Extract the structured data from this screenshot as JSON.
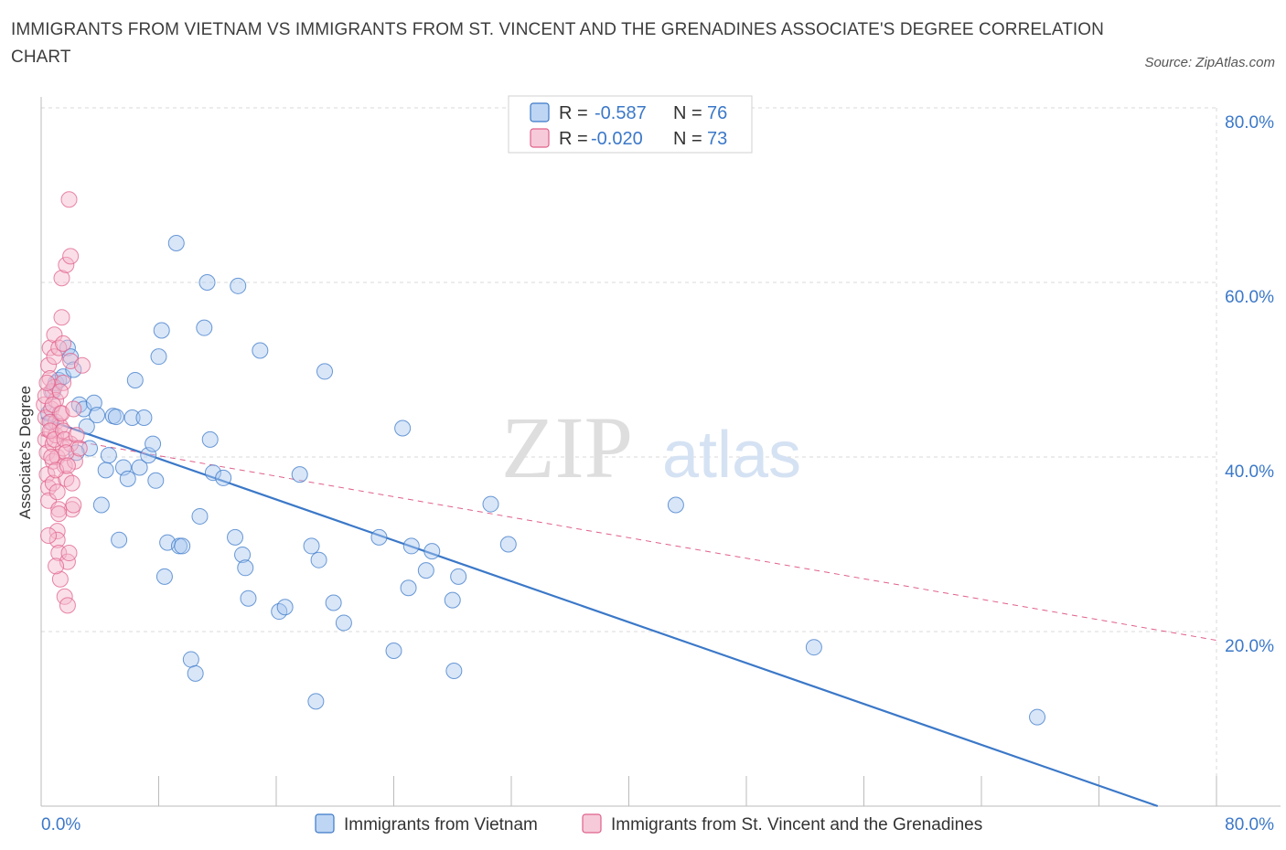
{
  "title": "IMMIGRANTS FROM VIETNAM VS IMMIGRANTS FROM ST. VINCENT AND THE GRENADINES ASSOCIATE'S DEGREE CORRELATION CHART",
  "source": "Source: ZipAtlas.com",
  "watermark": {
    "zip": "ZIP",
    "atlas": "atlas"
  },
  "colors": {
    "blue": "#3b78c8",
    "blue_fill": "#a8c8f0",
    "pink": "#e0608a",
    "pink_fill": "#f4b8cc",
    "grid": "#d8d8d8",
    "tick_text": "#3b78c8"
  },
  "legend": {
    "rows": [
      {
        "r_label": "R =",
        "r_value": "-0.587",
        "n_label": "N =",
        "n_value": "76"
      },
      {
        "r_label": "R =",
        "r_value": "-0.020",
        "n_label": "N =",
        "n_value": "73"
      }
    ]
  },
  "chart_data": {
    "type": "scatter",
    "xlabel": "",
    "ylabel": "Associate's Degree",
    "xlim": [
      0,
      80
    ],
    "ylim": [
      0,
      80
    ],
    "x_tick_labels": [
      "0.0%",
      "80.0%"
    ],
    "y_tick_labels": [
      "20.0%",
      "40.0%",
      "60.0%",
      "80.0%"
    ],
    "y_ticks": [
      20,
      40,
      60,
      80
    ],
    "grid": true,
    "legend_position": "bottom",
    "series": [
      {
        "name": "Immigrants from Vietnam",
        "color": "#3b78c8",
        "points": [
          [
            0.5,
            45.0
          ],
          [
            0.8,
            47.5
          ],
          [
            1.0,
            48.5
          ],
          [
            1.2,
            48.8
          ],
          [
            1.5,
            49.2
          ],
          [
            1.8,
            52.5
          ],
          [
            2.0,
            51.5
          ],
          [
            2.2,
            50.0
          ],
          [
            2.6,
            46.0
          ],
          [
            2.9,
            45.5
          ],
          [
            3.1,
            43.5
          ],
          [
            3.3,
            41.0
          ],
          [
            3.6,
            46.2
          ],
          [
            3.8,
            44.8
          ],
          [
            4.1,
            34.5
          ],
          [
            4.4,
            38.5
          ],
          [
            4.6,
            40.2
          ],
          [
            4.9,
            44.7
          ],
          [
            5.1,
            44.6
          ],
          [
            5.3,
            30.5
          ],
          [
            5.6,
            38.8
          ],
          [
            5.9,
            37.5
          ],
          [
            6.2,
            44.5
          ],
          [
            6.4,
            48.8
          ],
          [
            6.7,
            38.8
          ],
          [
            7.0,
            44.5
          ],
          [
            7.3,
            40.2
          ],
          [
            7.6,
            41.5
          ],
          [
            7.8,
            37.3
          ],
          [
            8.0,
            51.5
          ],
          [
            8.2,
            54.5
          ],
          [
            8.4,
            26.3
          ],
          [
            8.6,
            30.2
          ],
          [
            9.2,
            64.5
          ],
          [
            9.4,
            29.8
          ],
          [
            9.6,
            29.8
          ],
          [
            10.2,
            16.8
          ],
          [
            10.5,
            15.2
          ],
          [
            10.8,
            33.2
          ],
          [
            11.1,
            54.8
          ],
          [
            11.3,
            60.0
          ],
          [
            11.5,
            42.0
          ],
          [
            11.7,
            38.2
          ],
          [
            12.4,
            37.6
          ],
          [
            13.2,
            30.8
          ],
          [
            13.4,
            59.6
          ],
          [
            13.7,
            28.8
          ],
          [
            13.9,
            27.3
          ],
          [
            14.1,
            23.8
          ],
          [
            14.9,
            52.2
          ],
          [
            16.2,
            22.3
          ],
          [
            16.6,
            22.8
          ],
          [
            17.6,
            38.0
          ],
          [
            18.4,
            29.8
          ],
          [
            18.7,
            12.0
          ],
          [
            18.9,
            28.2
          ],
          [
            19.3,
            49.8
          ],
          [
            19.9,
            23.3
          ],
          [
            20.6,
            21.0
          ],
          [
            23.0,
            30.8
          ],
          [
            24.0,
            17.8
          ],
          [
            24.6,
            43.3
          ],
          [
            25.0,
            25.0
          ],
          [
            25.2,
            29.8
          ],
          [
            26.2,
            27.0
          ],
          [
            26.6,
            29.2
          ],
          [
            28.0,
            23.6
          ],
          [
            28.1,
            15.5
          ],
          [
            28.4,
            26.3
          ],
          [
            30.6,
            34.6
          ],
          [
            31.8,
            30.0
          ],
          [
            43.2,
            34.5
          ],
          [
            52.6,
            18.2
          ],
          [
            67.8,
            10.2
          ],
          [
            0.7,
            44.0
          ],
          [
            2.4,
            40.5
          ]
        ]
      },
      {
        "name": "Immigrants from St. Vincent and the Grenadines",
        "color": "#e0608a",
        "points": [
          [
            0.2,
            46.0
          ],
          [
            0.3,
            44.5
          ],
          [
            0.3,
            42.0
          ],
          [
            0.4,
            40.5
          ],
          [
            0.4,
            38.0
          ],
          [
            0.5,
            36.5
          ],
          [
            0.5,
            35.0
          ],
          [
            0.5,
            50.5
          ],
          [
            0.6,
            52.5
          ],
          [
            0.6,
            49.0
          ],
          [
            0.7,
            47.5
          ],
          [
            0.7,
            45.5
          ],
          [
            0.7,
            43.0
          ],
          [
            0.8,
            41.5
          ],
          [
            0.8,
            39.5
          ],
          [
            0.8,
            37.0
          ],
          [
            0.9,
            54.0
          ],
          [
            0.9,
            51.5
          ],
          [
            0.9,
            48.0
          ],
          [
            1.0,
            46.5
          ],
          [
            1.0,
            44.0
          ],
          [
            1.0,
            42.5
          ],
          [
            1.1,
            40.0
          ],
          [
            1.1,
            31.5
          ],
          [
            1.1,
            30.5
          ],
          [
            1.2,
            29.0
          ],
          [
            1.2,
            52.5
          ],
          [
            1.3,
            45.0
          ],
          [
            1.3,
            43.5
          ],
          [
            1.3,
            26.0
          ],
          [
            1.4,
            56.0
          ],
          [
            1.4,
            60.5
          ],
          [
            1.5,
            53.0
          ],
          [
            1.5,
            48.5
          ],
          [
            1.5,
            41.0
          ],
          [
            1.6,
            39.0
          ],
          [
            1.6,
            24.0
          ],
          [
            1.7,
            62.0
          ],
          [
            1.7,
            37.5
          ],
          [
            1.8,
            23.0
          ],
          [
            1.8,
            28.0
          ],
          [
            1.9,
            29.0
          ],
          [
            1.9,
            69.5
          ],
          [
            2.0,
            63.0
          ],
          [
            2.0,
            41.5
          ],
          [
            2.1,
            37.0
          ],
          [
            2.1,
            34.0
          ],
          [
            2.2,
            34.5
          ],
          [
            2.3,
            39.5
          ],
          [
            0.3,
            47.0
          ],
          [
            0.4,
            48.5
          ],
          [
            0.6,
            44.0
          ],
          [
            0.6,
            43.0
          ],
          [
            0.7,
            40.0
          ],
          [
            0.8,
            46.0
          ],
          [
            0.9,
            42.0
          ],
          [
            1.0,
            38.5
          ],
          [
            1.1,
            36.0
          ],
          [
            1.2,
            34.0
          ],
          [
            1.3,
            47.5
          ],
          [
            1.4,
            45.0
          ],
          [
            1.5,
            43.0
          ],
          [
            1.6,
            42.0
          ],
          [
            1.7,
            40.5
          ],
          [
            1.8,
            39.0
          ],
          [
            2.0,
            51.0
          ],
          [
            2.2,
            45.5
          ],
          [
            2.4,
            42.5
          ],
          [
            2.6,
            41.0
          ],
          [
            0.5,
            31.0
          ],
          [
            1.0,
            27.5
          ],
          [
            1.2,
            33.5
          ],
          [
            2.8,
            50.5
          ]
        ]
      }
    ],
    "trendlines": [
      {
        "series": "Immigrants from Vietnam",
        "x": [
          0,
          76
        ],
        "y": [
          44.5,
          0
        ],
        "style": "solid"
      },
      {
        "series": "Immigrants from St. Vincent and the Grenadines",
        "x": [
          0,
          80
        ],
        "y": [
          42.5,
          19.0
        ],
        "style": "dashed"
      }
    ]
  }
}
